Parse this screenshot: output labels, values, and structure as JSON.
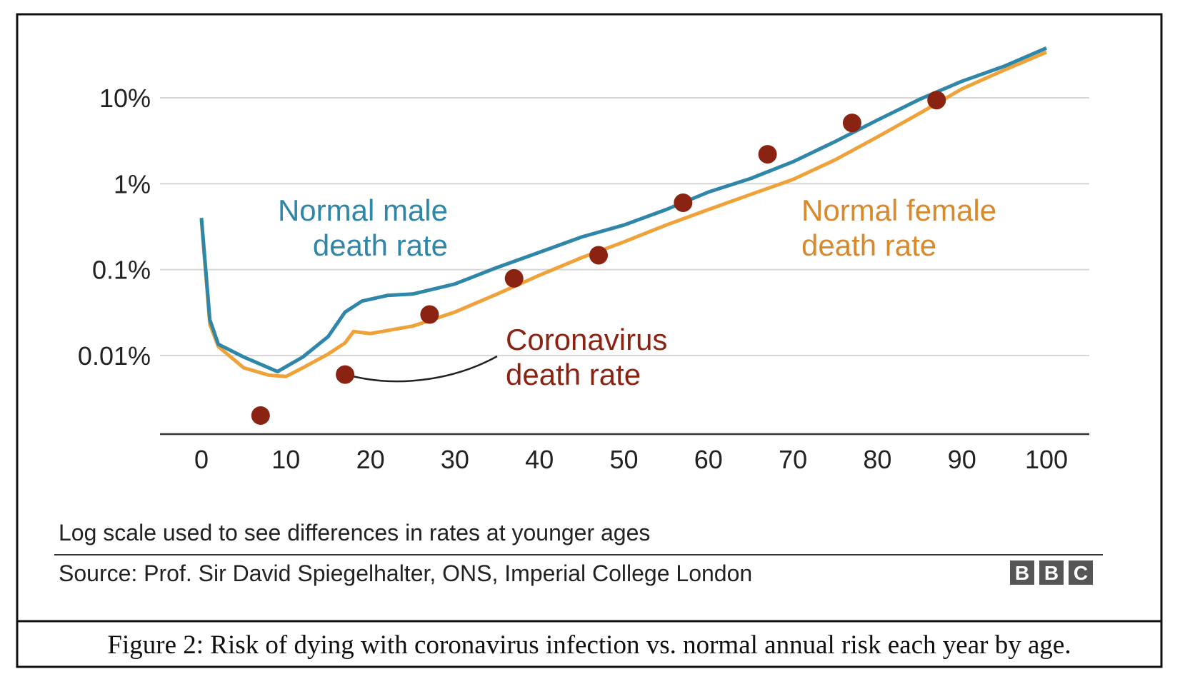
{
  "chart_data": {
    "type": "line",
    "title": "",
    "xlabel": "",
    "ylabel": "",
    "y_scale": "log",
    "xlim": [
      0,
      100
    ],
    "ylim_percent": [
      0.0012,
      50
    ],
    "grid": "horizontal",
    "x_ticks": [
      "0",
      "10",
      "20",
      "30",
      "40",
      "50",
      "60",
      "70",
      "80",
      "90",
      "100"
    ],
    "x_tick_values": [
      0,
      10,
      20,
      30,
      40,
      50,
      60,
      70,
      80,
      90,
      100
    ],
    "y_ticks": [
      "10%",
      "1%",
      "0.1%",
      "0.01%"
    ],
    "y_tick_values": [
      10,
      1,
      0.1,
      0.01
    ],
    "series": [
      {
        "name": "Normal male death rate",
        "label_lines": [
          "Normal male",
          "death rate"
        ],
        "color": "#2e86a8",
        "type": "line",
        "x": [
          0,
          1,
          2,
          5,
          9,
          12,
          15,
          17,
          19,
          22,
          25,
          30,
          35,
          40,
          45,
          50,
          55,
          60,
          65,
          70,
          75,
          80,
          85,
          90,
          95,
          100
        ],
        "y": [
          0.4,
          0.026,
          0.0135,
          0.0096,
          0.0065,
          0.0096,
          0.0166,
          0.032,
          0.043,
          0.05,
          0.052,
          0.068,
          0.106,
          0.159,
          0.24,
          0.33,
          0.5,
          0.8,
          1.15,
          1.8,
          3.1,
          5.5,
          9.6,
          15.6,
          23.3,
          38
        ]
      },
      {
        "name": "Normal female death rate",
        "label_lines": [
          "Normal female",
          "death rate"
        ],
        "color": "#f0a23a",
        "type": "line",
        "x": [
          0,
          1,
          2,
          5,
          8,
          10,
          12,
          15,
          17,
          18,
          20,
          25,
          30,
          35,
          40,
          45,
          50,
          55,
          60,
          65,
          70,
          75,
          80,
          85,
          90,
          95,
          100
        ],
        "y": [
          0.38,
          0.023,
          0.0127,
          0.0072,
          0.0059,
          0.0057,
          0.0072,
          0.0104,
          0.014,
          0.019,
          0.018,
          0.022,
          0.032,
          0.052,
          0.086,
          0.138,
          0.21,
          0.33,
          0.5,
          0.75,
          1.12,
          1.9,
          3.5,
          6.6,
          12.7,
          21,
          34
        ]
      },
      {
        "name": "Coronavirus death rate",
        "label_lines": [
          "Coronavirus",
          "death rate"
        ],
        "color": "#8b2312",
        "type": "scatter",
        "x": [
          7,
          17,
          27,
          37,
          47,
          57,
          67,
          77,
          87
        ],
        "y": [
          0.002,
          0.006,
          0.03,
          0.079,
          0.147,
          0.6,
          2.2,
          5.1,
          9.4
        ]
      }
    ],
    "footnote": "Log scale used to see differences in rates at younger ages",
    "source": "Source: Prof. Sir David Spiegelhalter, ONS, Imperial College London",
    "logo": "BBC"
  },
  "caption": "Figure 2: Risk of dying with coronavirus infection vs. normal annual risk each year by age.",
  "colors": {
    "grid": "#d6d6d6",
    "axis": "#333333",
    "border": "#111111"
  }
}
